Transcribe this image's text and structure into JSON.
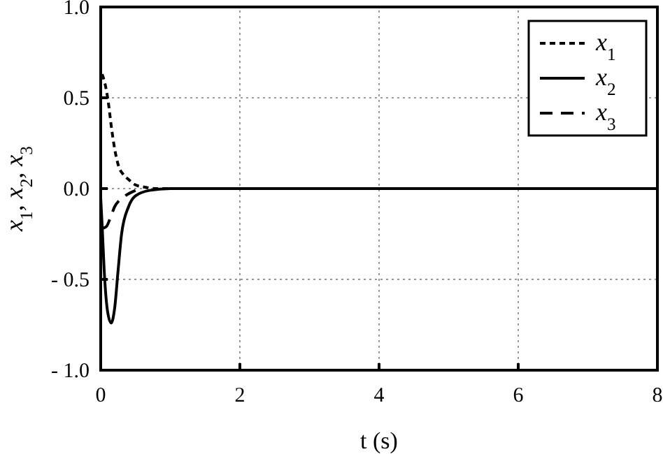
{
  "chart_data": {
    "type": "line",
    "xlabel": "t (s)",
    "ylabel": "x$_{1}$, x$_{2}$, x$_{3}$",
    "xlim": [
      0,
      8
    ],
    "xticks": [
      0,
      2,
      4,
      6,
      8
    ],
    "ylim": [
      -1,
      1
    ],
    "yticks": [
      {
        "value": -1,
        "label": "- 1.0"
      },
      {
        "value": -0.5,
        "label": "- 0.5"
      },
      {
        "value": 0,
        "label": "0.0"
      },
      {
        "value": 0.5,
        "label": "0.5"
      },
      {
        "value": 1,
        "label": "1.0"
      }
    ],
    "grid": true,
    "legend": "top right",
    "series": [
      {
        "name": "x$_{1}$",
        "color": "#000000",
        "line_style": "dotted",
        "x": [
          0.02,
          0.06,
          0.1,
          0.16,
          0.2,
          0.26,
          0.32,
          0.4,
          0.5,
          0.6,
          0.8,
          1,
          2,
          4,
          6,
          8
        ],
        "values": [
          0.63,
          0.58,
          0.5,
          0.32,
          0.22,
          0.12,
          0.08,
          0.05,
          0.02,
          0.01,
          0,
          0,
          0,
          0,
          0,
          0
        ]
      },
      {
        "name": "x$_{2}$",
        "color": "#000000",
        "line_style": "solid",
        "x": [
          0,
          0.02,
          0.05,
          0.1,
          0.15,
          0.2,
          0.25,
          0.3,
          0.4,
          0.5,
          0.7,
          1,
          2,
          4,
          6,
          8
        ],
        "values": [
          -0.05,
          -0.2,
          -0.45,
          -0.68,
          -0.74,
          -0.66,
          -0.45,
          -0.25,
          -0.1,
          -0.04,
          -0.01,
          0,
          0,
          0,
          0,
          0
        ]
      },
      {
        "name": "x$_{3}$",
        "color": "#000000",
        "line_style": "dashed",
        "x": [
          0.02,
          0.08,
          0.14,
          0.2,
          0.28,
          0.35,
          0.5
        ],
        "values": [
          -0.22,
          -0.21,
          -0.16,
          -0.1,
          -0.06,
          -0.04,
          -0.01
        ]
      }
    ]
  }
}
